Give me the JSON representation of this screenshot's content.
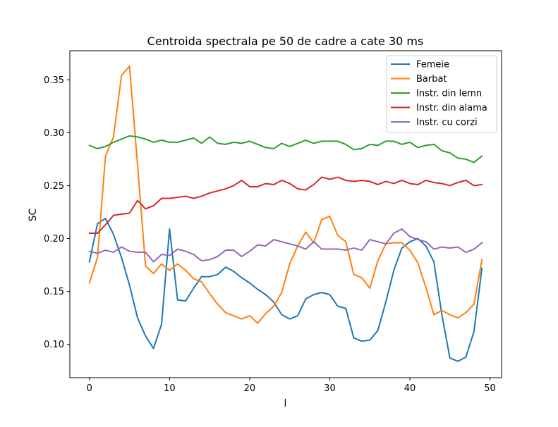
{
  "chart_data": {
    "type": "line",
    "title": "Centroida spectrala pe 50 de cadre a cate 30 ms",
    "xlabel": "l",
    "ylabel": "SC",
    "xlim": [
      -2.45,
      51.45
    ],
    "ylim": [
      0.0685,
      0.3775
    ],
    "xticks": [
      0,
      10,
      20,
      30,
      40,
      50
    ],
    "xtick_labels": [
      "0",
      "10",
      "20",
      "30",
      "40",
      "50"
    ],
    "yticks": [
      0.1,
      0.15,
      0.2,
      0.25,
      0.3,
      0.35
    ],
    "ytick_labels": [
      "0.10",
      "0.15",
      "0.20",
      "0.25",
      "0.30",
      "0.35"
    ],
    "grid": false,
    "legend_position": "top-right",
    "x": [
      0,
      1,
      2,
      3,
      4,
      5,
      6,
      7,
      8,
      9,
      10,
      11,
      12,
      13,
      14,
      15,
      16,
      17,
      18,
      19,
      20,
      21,
      22,
      23,
      24,
      25,
      26,
      27,
      28,
      29,
      30,
      31,
      32,
      33,
      34,
      35,
      36,
      37,
      38,
      39,
      40,
      41,
      42,
      43,
      44,
      45,
      46,
      47,
      48,
      49
    ],
    "series": [
      {
        "name": "Femeie",
        "color": "#1f77b4",
        "values": [
          0.178,
          0.214,
          0.219,
          0.204,
          0.182,
          0.156,
          0.125,
          0.108,
          0.096,
          0.119,
          0.209,
          0.142,
          0.141,
          0.153,
          0.164,
          0.164,
          0.166,
          0.173,
          0.169,
          0.163,
          0.158,
          0.152,
          0.147,
          0.14,
          0.128,
          0.124,
          0.127,
          0.143,
          0.147,
          0.149,
          0.147,
          0.136,
          0.134,
          0.106,
          0.103,
          0.104,
          0.113,
          0.14,
          0.17,
          0.191,
          0.197,
          0.2,
          0.193,
          0.178,
          0.128,
          0.087,
          0.084,
          0.088,
          0.112,
          0.172
        ]
      },
      {
        "name": "Barbat",
        "color": "#ff7f0e",
        "values": [
          0.158,
          0.182,
          0.278,
          0.296,
          0.354,
          0.363,
          0.27,
          0.174,
          0.167,
          0.176,
          0.17,
          0.176,
          0.17,
          0.162,
          0.159,
          0.148,
          0.138,
          0.13,
          0.127,
          0.124,
          0.127,
          0.12,
          0.129,
          0.136,
          0.149,
          0.176,
          0.193,
          0.206,
          0.196,
          0.218,
          0.221,
          0.203,
          0.197,
          0.166,
          0.163,
          0.153,
          0.179,
          0.195,
          0.196,
          0.196,
          0.189,
          0.177,
          0.154,
          0.128,
          0.132,
          0.128,
          0.125,
          0.13,
          0.138,
          0.18
        ]
      },
      {
        "name": "Instr. din lemn",
        "color": "#2ca02c",
        "values": [
          0.288,
          0.285,
          0.287,
          0.291,
          0.294,
          0.297,
          0.296,
          0.294,
          0.291,
          0.293,
          0.291,
          0.291,
          0.293,
          0.295,
          0.29,
          0.296,
          0.29,
          0.289,
          0.291,
          0.29,
          0.292,
          0.289,
          0.286,
          0.285,
          0.29,
          0.287,
          0.29,
          0.293,
          0.29,
          0.292,
          0.292,
          0.292,
          0.289,
          0.284,
          0.285,
          0.289,
          0.288,
          0.292,
          0.292,
          0.289,
          0.291,
          0.286,
          0.288,
          0.289,
          0.283,
          0.281,
          0.276,
          0.275,
          0.272,
          0.278
        ]
      },
      {
        "name": "Instr. din alama",
        "color": "#d62728",
        "values": [
          0.205,
          0.205,
          0.213,
          0.222,
          0.223,
          0.224,
          0.236,
          0.228,
          0.231,
          0.238,
          0.238,
          0.239,
          0.24,
          0.238,
          0.24,
          0.243,
          0.245,
          0.247,
          0.25,
          0.255,
          0.249,
          0.249,
          0.252,
          0.251,
          0.255,
          0.252,
          0.247,
          0.246,
          0.251,
          0.258,
          0.256,
          0.258,
          0.255,
          0.254,
          0.255,
          0.254,
          0.251,
          0.254,
          0.252,
          0.255,
          0.252,
          0.251,
          0.255,
          0.253,
          0.252,
          0.25,
          0.253,
          0.255,
          0.25,
          0.251
        ]
      },
      {
        "name": "Instr. cu corzi",
        "color": "#9467bd",
        "values": [
          0.188,
          0.186,
          0.189,
          0.187,
          0.192,
          0.188,
          0.187,
          0.187,
          0.178,
          0.185,
          0.184,
          0.19,
          0.188,
          0.185,
          0.179,
          0.18,
          0.183,
          0.189,
          0.189,
          0.183,
          0.188,
          0.194,
          0.193,
          0.199,
          0.197,
          0.195,
          0.193,
          0.19,
          0.197,
          0.19,
          0.19,
          0.19,
          0.189,
          0.191,
          0.189,
          0.199,
          0.197,
          0.195,
          0.205,
          0.209,
          0.202,
          0.199,
          0.197,
          0.19,
          0.192,
          0.191,
          0.192,
          0.187,
          0.19,
          0.196
        ]
      }
    ]
  }
}
